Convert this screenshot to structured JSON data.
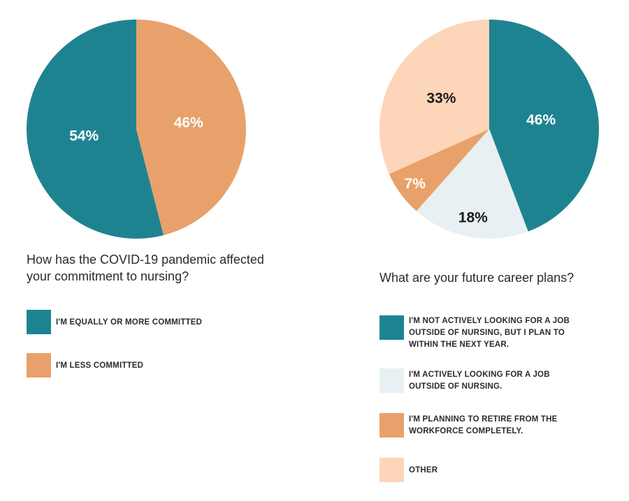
{
  "chart_data": [
    {
      "type": "pie",
      "title": "How has the COVID-19 pandemic affected your commitment to nursing?",
      "slices": [
        {
          "label": "I'M EQUALLY OR MORE COMMITTED",
          "value": 54,
          "display": "54%",
          "color": "#1e8391",
          "text_color": "#ffffff"
        },
        {
          "label": "I'M LESS COMMITTED",
          "value": 46,
          "display": "46%",
          "color": "#e8a16a",
          "text_color": "#ffffff"
        }
      ]
    },
    {
      "type": "pie",
      "title": "What are your future career plans?",
      "slices": [
        {
          "label": "I'M NOT ACTIVELY LOOKING FOR A JOB OUTSIDE OF NURSING, BUT I PLAN TO WITHIN THE NEXT YEAR.",
          "value": 46,
          "display": "46%",
          "color": "#1e8391",
          "text_color": "#ffffff"
        },
        {
          "label": "I'M ACTIVELY LOOKING FOR A JOB OUTSIDE OF NURSING.",
          "value": 18,
          "display": "18%",
          "color": "#e8f0f3",
          "text_color": "#1a1a1a"
        },
        {
          "label": "I'M PLANNING TO RETIRE FROM THE WORKFORCE COMPLETELY.",
          "value": 7,
          "display": "7%",
          "color": "#e8a16a",
          "text_color": "#ffffff"
        },
        {
          "label": "OTHER",
          "value": 33,
          "display": "33%",
          "color": "#fdd5b8",
          "text_color": "#1a1a1a"
        }
      ]
    }
  ]
}
